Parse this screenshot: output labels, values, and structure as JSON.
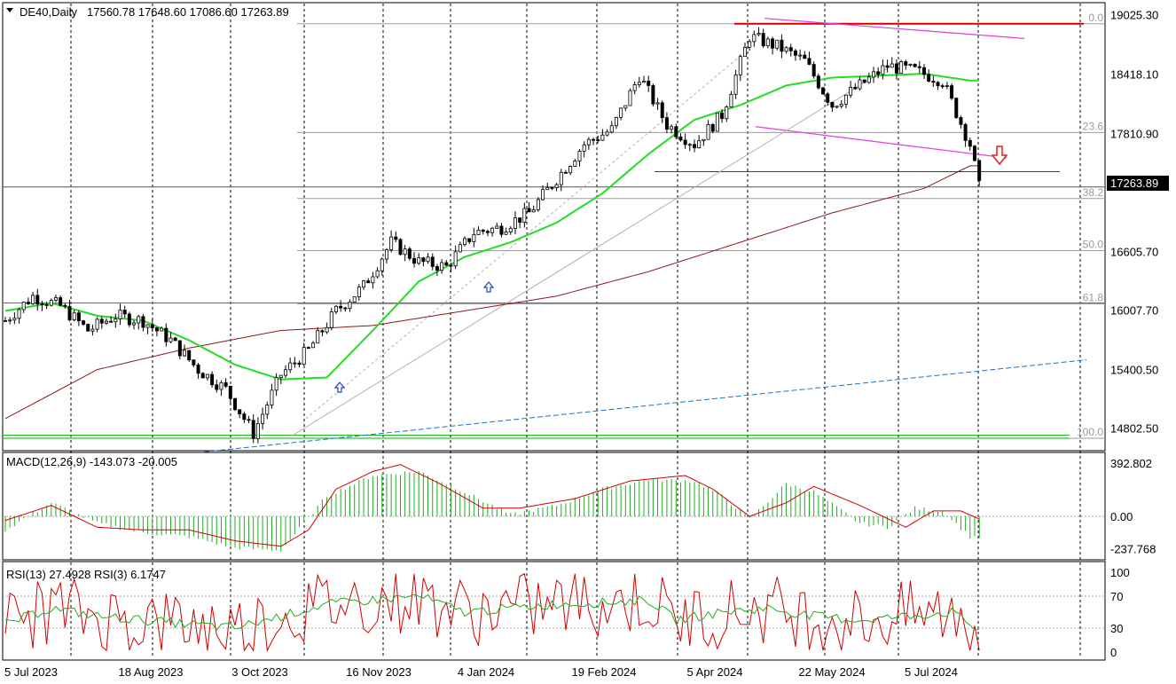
{
  "chart_data": [
    {
      "type": "candlestick",
      "header": {
        "symbol_timeframe": "DE40,Daily",
        "ohlc": "17560.78 17648.60 17086.60 17263.89"
      },
      "y_ticks": [
        "19025.30",
        "18418.10",
        "17810.90",
        "16605.70",
        "16007.70",
        "15400.50",
        "14802.50"
      ],
      "ylim": [
        14600,
        19100
      ],
      "current_price": "17263.89",
      "current_price_value": 17263.89,
      "x_tick_labels": [
        "5 Jul 2023",
        "18 Aug 2023",
        "3 Oct 2023",
        "16 Nov 2023",
        "4 Jan 2024",
        "19 Feb 2024",
        "5 Apr 2024",
        "22 May 2024",
        "5 Jul 2024"
      ],
      "fibonacci_levels": [
        {
          "label": "0.0",
          "value": 18930
        },
        {
          "label": "23.6",
          "value": 17820
        },
        {
          "label": "38.2",
          "value": 17146
        },
        {
          "label": "50.0",
          "value": 16615
        },
        {
          "label": "61.8",
          "value": 16070
        },
        {
          "label": "100.0",
          "value": 14700
        }
      ],
      "horizontal_levels": [
        {
          "value": 18930,
          "color": "#d00000"
        },
        {
          "value": 17420,
          "color": "#d00000"
        },
        {
          "value": 16080,
          "color": "#00b000"
        },
        {
          "value": 14730,
          "color": "#00b000"
        },
        {
          "value": 14700,
          "color": "#00b000"
        }
      ],
      "ma_fast_key": [
        [
          0,
          16000
        ],
        [
          10,
          16080
        ],
        [
          20,
          15950
        ],
        [
          30,
          15900
        ],
        [
          40,
          15700
        ],
        [
          50,
          15450
        ],
        [
          60,
          15300
        ],
        [
          70,
          15320
        ],
        [
          80,
          15800
        ],
        [
          90,
          16300
        ],
        [
          100,
          16550
        ],
        [
          110,
          16700
        ],
        [
          120,
          16900
        ],
        [
          130,
          17200
        ],
        [
          140,
          17600
        ],
        [
          150,
          17950
        ],
        [
          160,
          18100
        ],
        [
          170,
          18300
        ],
        [
          180,
          18380
        ],
        [
          190,
          18400
        ],
        [
          200,
          18420
        ],
        [
          210,
          18350
        ]
      ],
      "ma_slow_key": [
        [
          0,
          14900
        ],
        [
          20,
          15400
        ],
        [
          40,
          15620
        ],
        [
          60,
          15800
        ],
        [
          80,
          15850
        ],
        [
          100,
          16000
        ],
        [
          120,
          16150
        ],
        [
          140,
          16400
        ],
        [
          160,
          16700
        ],
        [
          180,
          17000
        ],
        [
          200,
          17250
        ],
        [
          210,
          17480
        ]
      ],
      "candle_path_key": [
        [
          0,
          15900
        ],
        [
          6,
          16150
        ],
        [
          12,
          16050
        ],
        [
          18,
          15800
        ],
        [
          24,
          15950
        ],
        [
          30,
          15900
        ],
        [
          36,
          15700
        ],
        [
          42,
          15400
        ],
        [
          48,
          15200
        ],
        [
          54,
          14750
        ],
        [
          60,
          15350
        ],
        [
          66,
          15600
        ],
        [
          72,
          16000
        ],
        [
          78,
          16250
        ],
        [
          84,
          16700
        ],
        [
          90,
          16500
        ],
        [
          96,
          16450
        ],
        [
          102,
          16800
        ],
        [
          108,
          16850
        ],
        [
          114,
          17000
        ],
        [
          120,
          17350
        ],
        [
          126,
          17700
        ],
        [
          132,
          17850
        ],
        [
          138,
          18400
        ],
        [
          144,
          17900
        ],
        [
          150,
          17700
        ],
        [
          156,
          18000
        ],
        [
          162,
          18800
        ],
        [
          168,
          18700
        ],
        [
          174,
          18550
        ],
        [
          180,
          18100
        ],
        [
          186,
          18300
        ],
        [
          192,
          18500
        ],
        [
          198,
          18450
        ],
        [
          204,
          18350
        ],
        [
          210,
          17700
        ],
        [
          212,
          17264
        ]
      ],
      "macd": {
        "label": "MACD(12,26,9) -143.073 -20.005",
        "y_ticks": [
          "392.802",
          "0.00",
          "-237.768"
        ],
        "ylim": [
          -300,
          450
        ],
        "hist_key": [
          [
            0,
            -100
          ],
          [
            10,
            100
          ],
          [
            20,
            -50
          ],
          [
            30,
            -120
          ],
          [
            40,
            -150
          ],
          [
            50,
            -230
          ],
          [
            60,
            -250
          ],
          [
            70,
            150
          ],
          [
            80,
            300
          ],
          [
            90,
            330
          ],
          [
            100,
            180
          ],
          [
            110,
            10
          ],
          [
            120,
            80
          ],
          [
            130,
            200
          ],
          [
            140,
            270
          ],
          [
            150,
            260
          ],
          [
            156,
            150
          ],
          [
            162,
            -20
          ],
          [
            170,
            240
          ],
          [
            176,
            180
          ],
          [
            186,
            -50
          ],
          [
            192,
            -80
          ],
          [
            198,
            60
          ],
          [
            204,
            40
          ],
          [
            210,
            -150
          ]
        ],
        "signal_key": [
          [
            0,
            -30
          ],
          [
            10,
            80
          ],
          [
            20,
            -80
          ],
          [
            30,
            -100
          ],
          [
            40,
            -100
          ],
          [
            50,
            -180
          ],
          [
            60,
            -220
          ],
          [
            66,
            -100
          ],
          [
            72,
            200
          ],
          [
            80,
            330
          ],
          [
            86,
            380
          ],
          [
            94,
            250
          ],
          [
            104,
            60
          ],
          [
            112,
            60
          ],
          [
            124,
            130
          ],
          [
            136,
            260
          ],
          [
            148,
            300
          ],
          [
            154,
            200
          ],
          [
            162,
            0
          ],
          [
            170,
            100
          ],
          [
            176,
            220
          ],
          [
            186,
            80
          ],
          [
            196,
            -80
          ],
          [
            202,
            40
          ],
          [
            208,
            40
          ],
          [
            212,
            -20
          ]
        ]
      },
      "rsi": {
        "label": "RSI(13) 27.4928  RSI(3) 6.1747",
        "y_ticks": [
          "100",
          "70",
          "30",
          "0"
        ],
        "levels": [
          100,
          70,
          30,
          0
        ],
        "rsi13_key": [
          [
            0,
            35
          ],
          [
            10,
            55
          ],
          [
            20,
            45
          ],
          [
            30,
            40
          ],
          [
            40,
            35
          ],
          [
            50,
            30
          ],
          [
            60,
            45
          ],
          [
            70,
            60
          ],
          [
            80,
            65
          ],
          [
            90,
            70
          ],
          [
            100,
            50
          ],
          [
            110,
            55
          ],
          [
            120,
            60
          ],
          [
            130,
            62
          ],
          [
            140,
            65
          ],
          [
            146,
            40
          ],
          [
            156,
            50
          ],
          [
            166,
            55
          ],
          [
            176,
            45
          ],
          [
            186,
            40
          ],
          [
            196,
            45
          ],
          [
            206,
            50
          ],
          [
            212,
            27
          ]
        ]
      }
    }
  ]
}
